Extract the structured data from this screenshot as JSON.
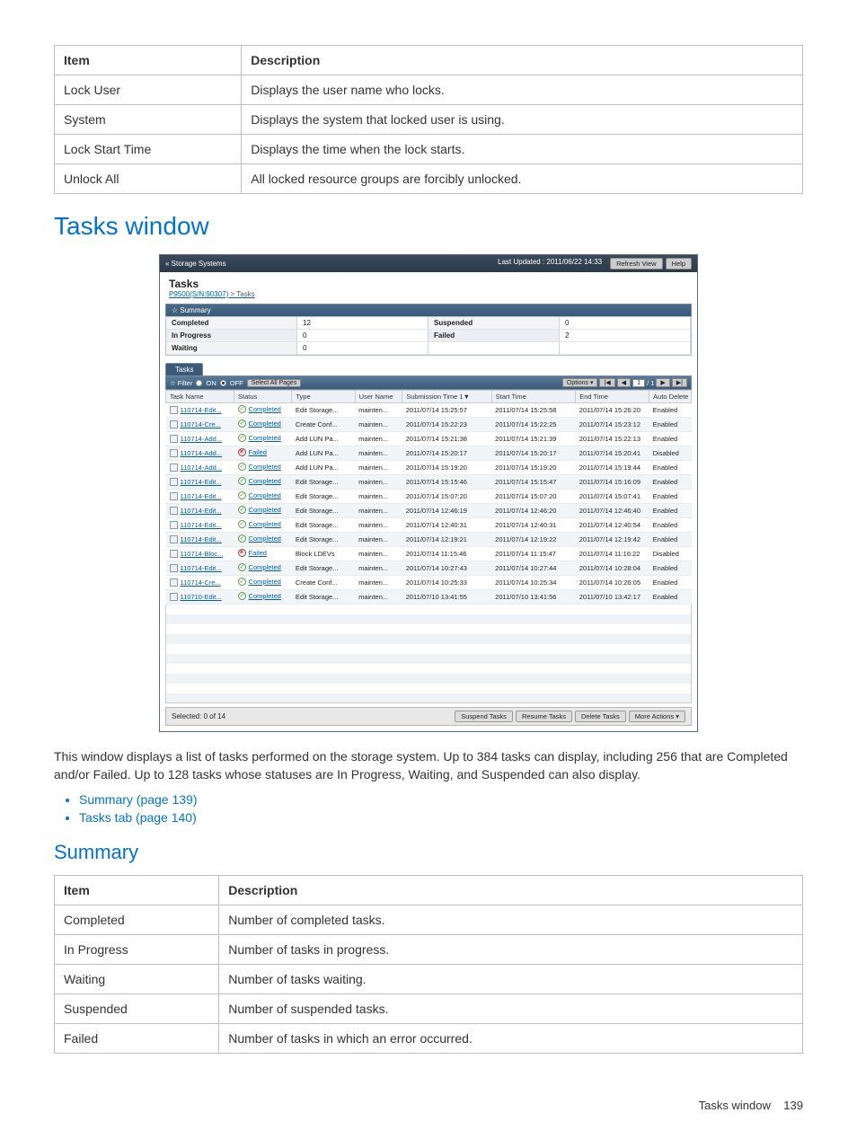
{
  "top_table": {
    "headers": [
      "Item",
      "Description"
    ],
    "rows": [
      [
        "Lock User",
        "Displays the user name who locks."
      ],
      [
        "System",
        "Displays the system that locked user is using."
      ],
      [
        "Lock Start Time",
        "Displays the time when the lock starts."
      ],
      [
        "Unlock All",
        "All locked resource groups are forcibly unlocked."
      ]
    ]
  },
  "h1": "Tasks window",
  "app": {
    "back_link": "« Storage Systems",
    "updated_label": "Last Updated : 2011/06/22 14:33",
    "refresh": "Refresh View",
    "help": "Help",
    "title": "Tasks",
    "crumb_link": "P9500(S/N:90307)",
    "crumb_sep": " > Tasks",
    "summary_hdr": "☆  Summary",
    "summary": {
      "completed_l": "Completed",
      "completed_v": "12",
      "suspended_l": "Suspended",
      "suspended_v": "0",
      "inprog_l": "In Progress",
      "inprog_v": "0",
      "failed_l": "Failed",
      "failed_v": "2",
      "waiting_l": "Waiting",
      "waiting_v": "0"
    },
    "tasks_tab": "Tasks",
    "filter_label": "☆ Filter",
    "on": "ON",
    "off": "OFF",
    "select_all": "Select All Pages",
    "options": "Options ▾",
    "page_field": "1",
    "page_of": "/ 1",
    "cols": {
      "task": "Task Name",
      "status": "Status",
      "type": "Type",
      "user": "User Name",
      "sub": "Submission Time   1▼",
      "start": "Start Time",
      "end": "End Time",
      "auto": "Auto Delete"
    },
    "rows": [
      {
        "tn": "110714-Edit...",
        "st": "Completed",
        "ok": true,
        "ty": "Edit Storage...",
        "un": "mainten...",
        "su": "2011/07/14 15:25:57",
        "sa": "2011/07/14 15:25:58",
        "en": "2011/07/14 15:26:20",
        "ad": "Enabled"
      },
      {
        "tn": "110714-Cre...",
        "st": "Completed",
        "ok": true,
        "ty": "Create Conf...",
        "un": "mainten...",
        "su": "2011/07/14 15:22:23",
        "sa": "2011/07/14 15:22:25",
        "en": "2011/07/14 15:23:12",
        "ad": "Enabled"
      },
      {
        "tn": "110714-Add...",
        "st": "Completed",
        "ok": true,
        "ty": "Add LUN Pa...",
        "un": "mainten...",
        "su": "2011/07/14 15:21:38",
        "sa": "2011/07/14 15:21:39",
        "en": "2011/07/14 15:22:13",
        "ad": "Enabled"
      },
      {
        "tn": "110714-Add...",
        "st": "Failed",
        "ok": false,
        "ty": "Add LUN Pa...",
        "un": "mainten...",
        "su": "2011/07/14 15:20:17",
        "sa": "2011/07/14 15:20:17",
        "en": "2011/07/14 15:20:41",
        "ad": "Disabled"
      },
      {
        "tn": "110714-Add...",
        "st": "Completed",
        "ok": true,
        "ty": "Add LUN Pa...",
        "un": "mainten...",
        "su": "2011/07/14 15:19:20",
        "sa": "2011/07/14 15:19:20",
        "en": "2011/07/14 15:19:44",
        "ad": "Enabled"
      },
      {
        "tn": "110714-Edit...",
        "st": "Completed",
        "ok": true,
        "ty": "Edit Storage...",
        "un": "mainten...",
        "su": "2011/07/14 15:15:46",
        "sa": "2011/07/14 15:15:47",
        "en": "2011/07/14 15:16:09",
        "ad": "Enabled"
      },
      {
        "tn": "110714-Edit...",
        "st": "Completed",
        "ok": true,
        "ty": "Edit Storage...",
        "un": "mainten...",
        "su": "2011/07/14 15:07:20",
        "sa": "2011/07/14 15:07:20",
        "en": "2011/07/14 15:07:41",
        "ad": "Enabled"
      },
      {
        "tn": "110714-Edit...",
        "st": "Completed",
        "ok": true,
        "ty": "Edit Storage...",
        "un": "mainten...",
        "su": "2011/07/14 12:46:19",
        "sa": "2011/07/14 12:46:20",
        "en": "2011/07/14 12:46:40",
        "ad": "Enabled"
      },
      {
        "tn": "110714-Edit...",
        "st": "Completed",
        "ok": true,
        "ty": "Edit Storage...",
        "un": "mainten...",
        "su": "2011/07/14 12:40:31",
        "sa": "2011/07/14 12:40:31",
        "en": "2011/07/14 12:40:54",
        "ad": "Enabled"
      },
      {
        "tn": "110714-Edit...",
        "st": "Completed",
        "ok": true,
        "ty": "Edit Storage...",
        "un": "mainten...",
        "su": "2011/07/14 12:19:21",
        "sa": "2011/07/14 12:19:22",
        "en": "2011/07/14 12:19:42",
        "ad": "Enabled"
      },
      {
        "tn": "110714-Bloc...",
        "st": "Failed",
        "ok": false,
        "ty": "Block LDEVs",
        "un": "mainten...",
        "su": "2011/07/14 11:15:46",
        "sa": "2011/07/14 11:15:47",
        "en": "2011/07/14 11:16:22",
        "ad": "Disabled"
      },
      {
        "tn": "110714-Edit...",
        "st": "Completed",
        "ok": true,
        "ty": "Edit Storage...",
        "un": "mainten...",
        "su": "2011/07/14 10:27:43",
        "sa": "2011/07/14 10:27:44",
        "en": "2011/07/14 10:28:04",
        "ad": "Enabled"
      },
      {
        "tn": "110714-Cre...",
        "st": "Completed",
        "ok": true,
        "ty": "Create Conf...",
        "un": "mainten...",
        "su": "2011/07/14 10:25:33",
        "sa": "2011/07/14 10:25:34",
        "en": "2011/07/14 10:26:05",
        "ad": "Enabled"
      },
      {
        "tn": "110710-Edit...",
        "st": "Completed",
        "ok": true,
        "ty": "Edit Storage...",
        "un": "mainten...",
        "su": "2011/07/10 13:41:55",
        "sa": "2011/07/10 13:41:56",
        "en": "2011/07/10 13:42:17",
        "ad": "Enabled"
      }
    ],
    "selected": "Selected:  0    of  14",
    "suspend_btn": "Suspend Tasks",
    "resume_btn": "Resume Tasks",
    "delete_btn": "Delete Tasks",
    "more_btn": "More Actions ▾"
  },
  "body_p": "This window displays a list of tasks performed on the storage system. Up to 384 tasks can display, including 256 that are Completed and/or Failed. Up to 128 tasks whose statuses are In Progress, Waiting, and Suspended can also display.",
  "links": {
    "a": "Summary (page 139)",
    "b": "Tasks tab (page 140)"
  },
  "h2": "Summary",
  "sum_table": {
    "headers": [
      "Item",
      "Description"
    ],
    "rows": [
      [
        "Completed",
        "Number of completed tasks."
      ],
      [
        "In Progress",
        "Number of tasks in progress."
      ],
      [
        "Waiting",
        "Number of tasks waiting."
      ],
      [
        "Suspended",
        "Number of suspended tasks."
      ],
      [
        "Failed",
        "Number of tasks in which an error occurred."
      ]
    ]
  },
  "footer_l": "Tasks window",
  "footer_p": "139"
}
